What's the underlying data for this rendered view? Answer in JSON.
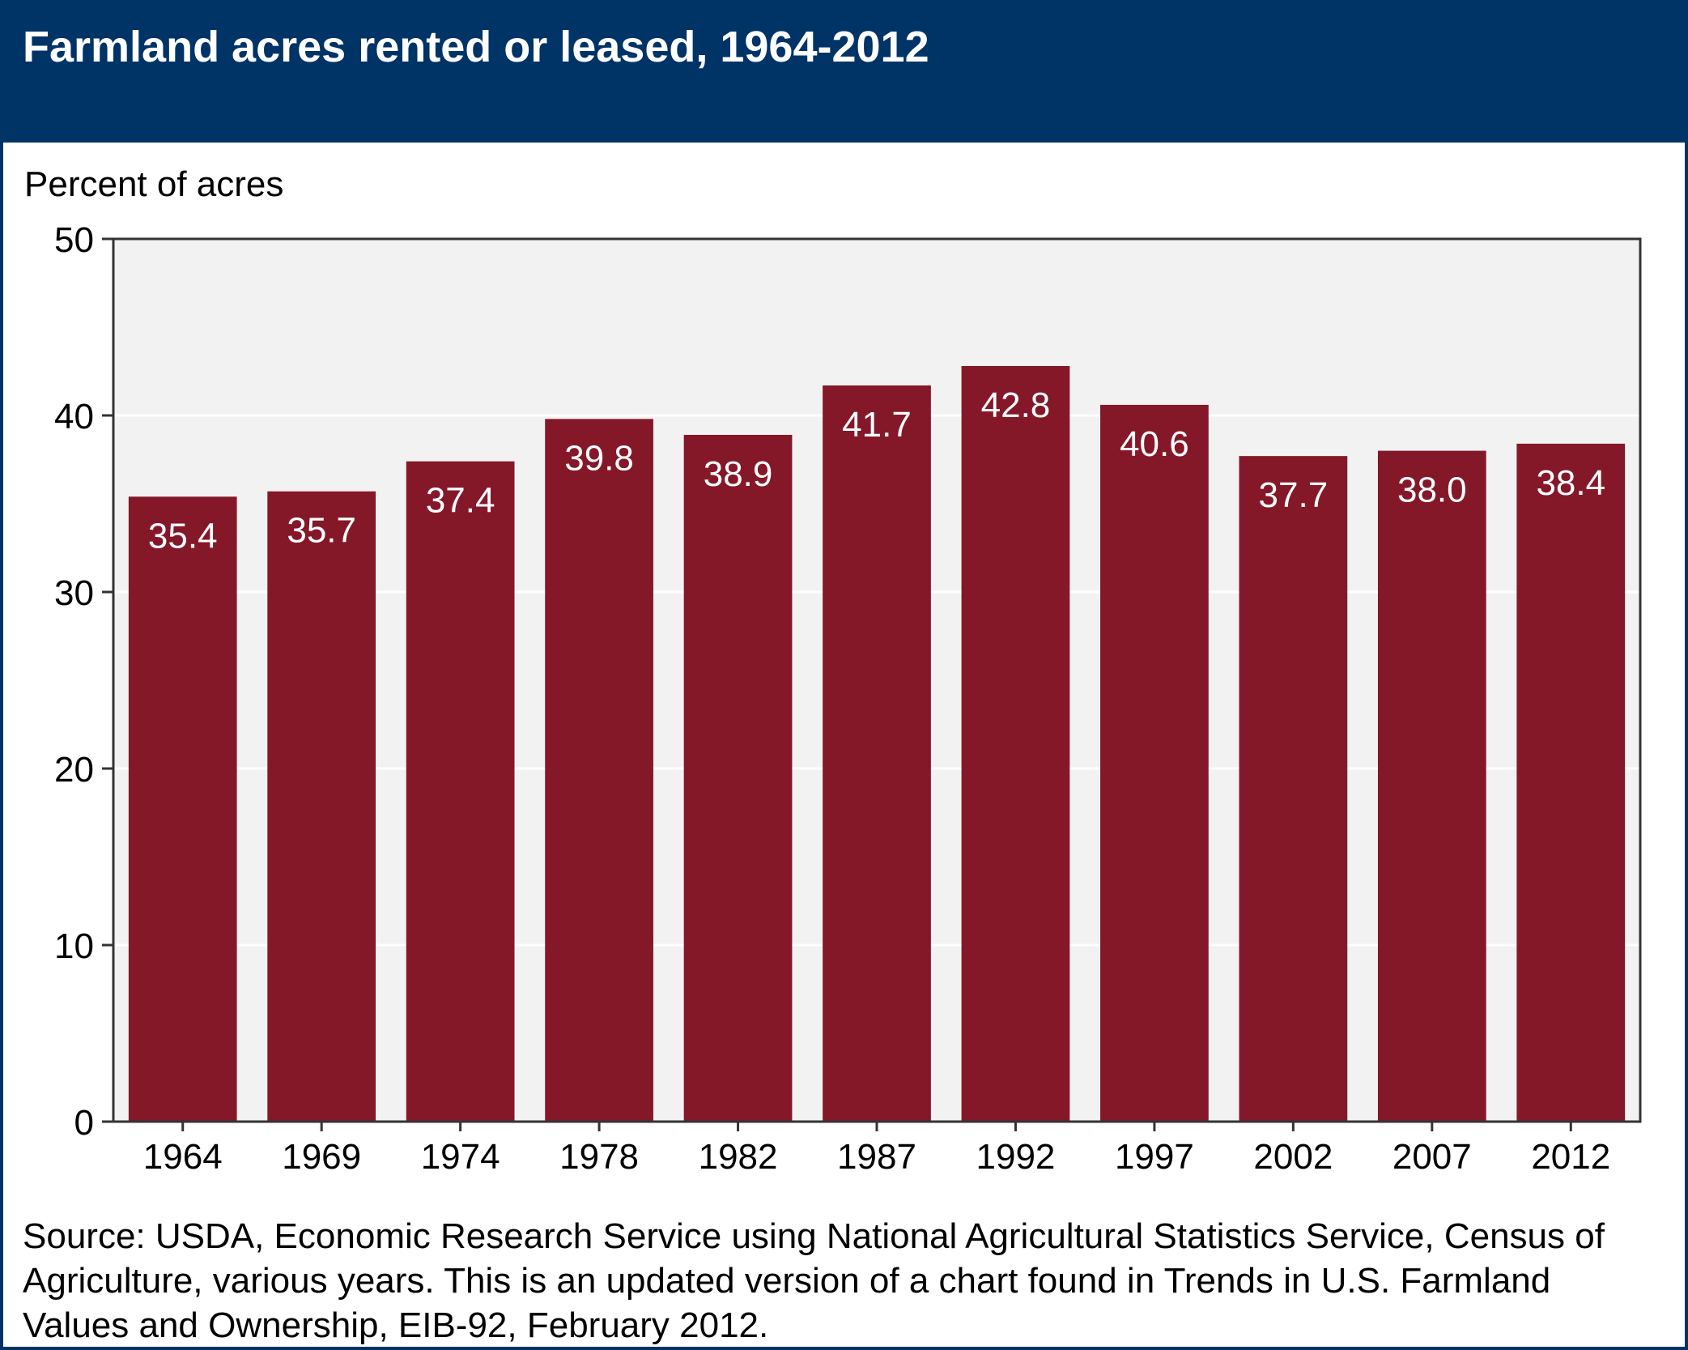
{
  "title": "Farmland acres rented or leased, 1964-2012",
  "source": "Source: USDA, Economic Research Service using National Agricultural Statistics Service, Census of Agriculture, various years. This is an updated version of a chart found in Trends in U.S. Farmland Values and Ownership, EIB-92, February 2012.",
  "colors": {
    "header": "#003366",
    "bar": "#841829",
    "plot_background": "#f2f2f2",
    "gridline": "#ffffff",
    "data_label": "#ffffff"
  },
  "chart_data": {
    "type": "bar",
    "title": "Farmland acres rented or leased, 1964-2012",
    "ylabel": "Percent of acres",
    "xlabel": "",
    "categories": [
      "1964",
      "1969",
      "1974",
      "1978",
      "1982",
      "1987",
      "1992",
      "1997",
      "2002",
      "2007",
      "2012"
    ],
    "values": [
      35.4,
      35.7,
      37.4,
      39.8,
      38.9,
      41.7,
      42.8,
      40.6,
      37.7,
      38.0,
      38.4
    ],
    "value_labels": [
      "35.4",
      "35.7",
      "37.4",
      "39.8",
      "38.9",
      "41.7",
      "42.8",
      "40.6",
      "37.7",
      "38.0",
      "38.4"
    ],
    "ylim": [
      0,
      50
    ],
    "yticks": [
      "0",
      "10",
      "20",
      "30",
      "40",
      "50"
    ],
    "grid": true,
    "legend": "none"
  }
}
